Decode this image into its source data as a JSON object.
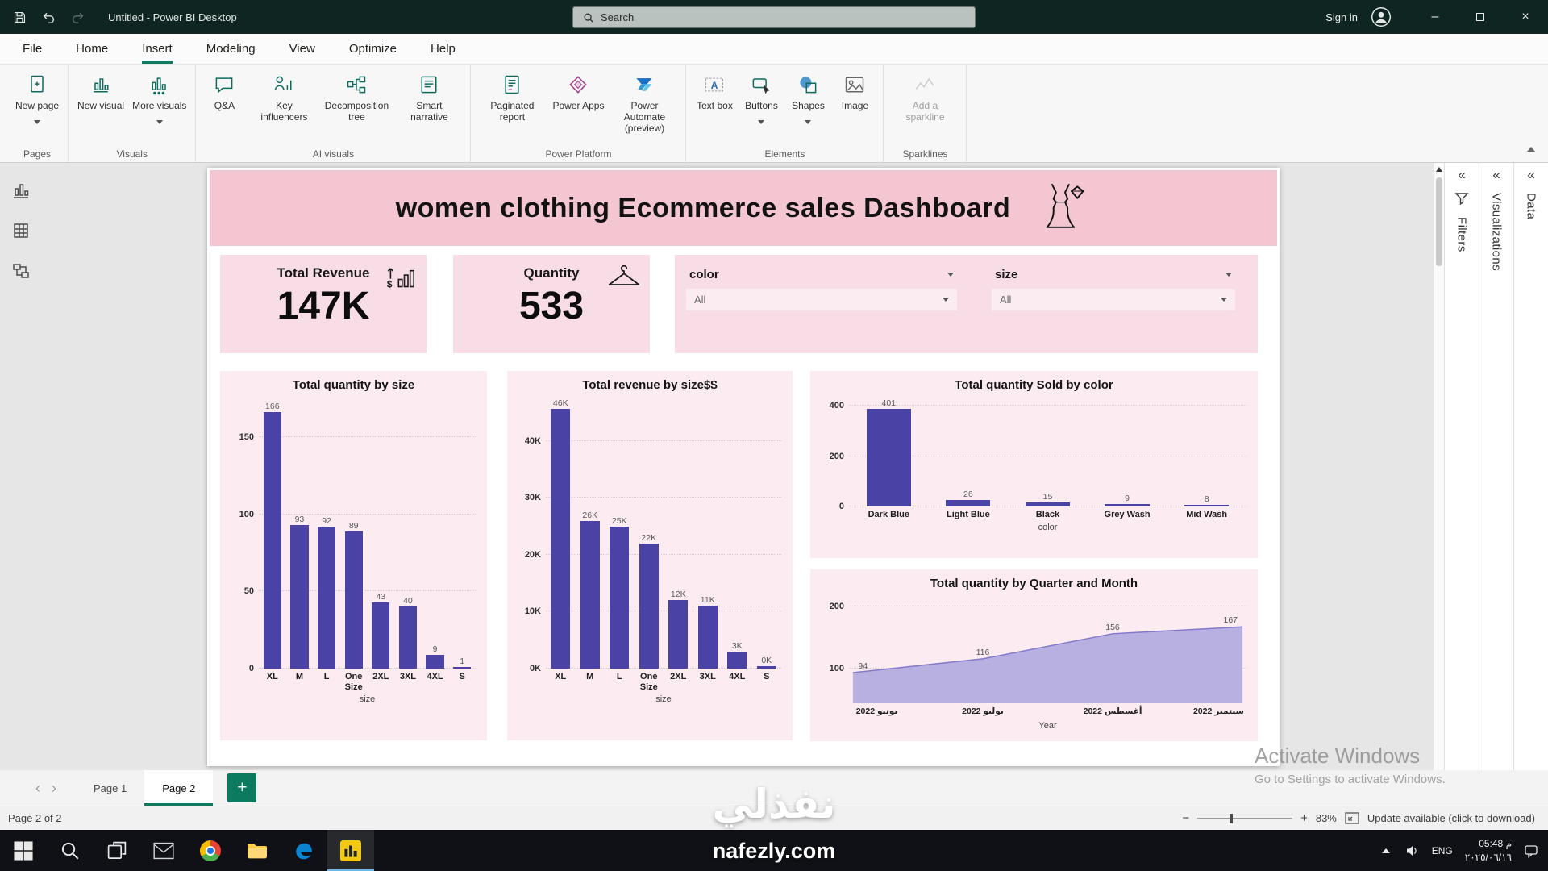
{
  "titlebar": {
    "title": "Untitled - Power BI Desktop",
    "search_placeholder": "Search",
    "sign_in_label": "Sign in"
  },
  "menu": {
    "items": [
      "File",
      "Home",
      "Insert",
      "Modeling",
      "View",
      "Optimize",
      "Help"
    ],
    "active": "Insert"
  },
  "ribbon": {
    "groups": [
      {
        "label": "Pages",
        "buttons": [
          {
            "label": "New page",
            "icon": "new-page-icon",
            "chevron": true
          }
        ]
      },
      {
        "label": "Visuals",
        "buttons": [
          {
            "label": "New visual",
            "icon": "new-visual-icon"
          },
          {
            "label": "More visuals",
            "icon": "more-visuals-icon",
            "chevron": true
          }
        ]
      },
      {
        "label": "AI visuals",
        "buttons": [
          {
            "label": "Q&A",
            "icon": "qa-icon"
          },
          {
            "label": "Key influencers",
            "icon": "key-influencers-icon"
          },
          {
            "label": "Decomposition tree",
            "icon": "decomposition-tree-icon"
          },
          {
            "label": "Smart narrative",
            "icon": "smart-narrative-icon"
          }
        ]
      },
      {
        "label": "Power Platform",
        "buttons": [
          {
            "label": "Paginated report",
            "icon": "paginated-report-icon"
          },
          {
            "label": "Power Apps",
            "icon": "power-apps-icon"
          },
          {
            "label": "Power Automate (preview)",
            "icon": "power-automate-icon"
          }
        ]
      },
      {
        "label": "Elements",
        "buttons": [
          {
            "label": "Text box",
            "icon": "text-box-icon"
          },
          {
            "label": "Buttons",
            "icon": "buttons-icon",
            "chevron": true
          },
          {
            "label": "Shapes",
            "icon": "shapes-icon",
            "chevron": true
          },
          {
            "label": "Image",
            "icon": "image-icon"
          }
        ]
      },
      {
        "label": "Sparklines",
        "buttons": [
          {
            "label": "Add a sparkline",
            "icon": "sparkline-icon",
            "disabled": true
          }
        ]
      }
    ]
  },
  "view_rail": {
    "items": [
      "report-view-icon",
      "table-view-icon",
      "model-view-icon"
    ]
  },
  "dashboard": {
    "title": "women clothing Ecommerce sales Dashboard",
    "cards": [
      {
        "label": "Total Revenue",
        "value": "147K",
        "icon": "revenue-icon"
      },
      {
        "label": "Quantity",
        "value": "533",
        "icon": "hanger-icon"
      }
    ],
    "slicers": [
      {
        "label": "color",
        "value": "All"
      },
      {
        "label": "size",
        "value": "All"
      }
    ]
  },
  "chart_data": [
    {
      "type": "bar",
      "title": "Total quantity by size",
      "xlabel": "size",
      "categories": [
        "XL",
        "M",
        "L",
        "One Size",
        "2XL",
        "3XL",
        "4XL",
        "S"
      ],
      "values": [
        166,
        93,
        92,
        89,
        43,
        40,
        9,
        1
      ],
      "value_labels": [
        "166",
        "93",
        "92",
        "89",
        "43",
        "40",
        "9",
        "1"
      ],
      "yticks": [
        {
          "v": 0,
          "label": "0"
        },
        {
          "v": 50,
          "label": "50"
        },
        {
          "v": 100,
          "label": "100"
        },
        {
          "v": 150,
          "label": "150"
        }
      ],
      "ymin": 0,
      "ymax": 175,
      "grid": true,
      "legend": "none"
    },
    {
      "type": "bar",
      "title": "Total revenue by size$$",
      "xlabel": "size",
      "categories": [
        "XL",
        "M",
        "L",
        "One Size",
        "2XL",
        "3XL",
        "4XL",
        "S"
      ],
      "values": [
        46,
        26,
        25,
        22,
        12,
        11,
        3,
        0.4
      ],
      "value_labels": [
        "46K",
        "26K",
        "25K",
        "22K",
        "12K",
        "11K",
        "3K",
        "0K"
      ],
      "yticks": [
        {
          "v": 0,
          "label": "0K"
        },
        {
          "v": 10,
          "label": "10K"
        },
        {
          "v": 20,
          "label": "20K"
        },
        {
          "v": 30,
          "label": "30K"
        },
        {
          "v": 40,
          "label": "40K"
        }
      ],
      "ymin": 0,
      "ymax": 47.5,
      "grid": true,
      "legend": "none"
    },
    {
      "type": "bar",
      "title": "Total quantity Sold by color",
      "xlabel": "color",
      "categories": [
        "Dark Blue",
        "Light Blue",
        "Black",
        "Grey Wash",
        "Mid Wash"
      ],
      "values": [
        401,
        26,
        15,
        9,
        8
      ],
      "value_labels": [
        "401",
        "26",
        "15",
        "9",
        "8"
      ],
      "yticks": [
        {
          "v": 0,
          "label": "0"
        },
        {
          "v": 200,
          "label": "200"
        },
        {
          "v": 400,
          "label": "400"
        }
      ],
      "ymin": 0,
      "ymax": 430,
      "grid": true,
      "legend": "none"
    },
    {
      "type": "area",
      "title": "Total quantity by Quarter and Month",
      "xlabel": "Year",
      "categories": [
        "يونيو 2022",
        "يوليو 2022",
        "أغسطس 2022",
        "سبتمبر 2022"
      ],
      "values": [
        94,
        116,
        156,
        167
      ],
      "value_labels": [
        "94",
        "116",
        "156",
        "167"
      ],
      "yticks": [
        {
          "v": 100,
          "label": "100"
        },
        {
          "v": 200,
          "label": "200"
        }
      ],
      "ymin": 45,
      "ymax": 215,
      "grid": true,
      "legend": "none"
    }
  ],
  "side_panels": [
    "Filters",
    "Visualizations",
    "Data"
  ],
  "pages_bar": {
    "tabs": [
      "Page 1",
      "Page 2"
    ],
    "active": "Page 2",
    "add_label": "+"
  },
  "status_bar": {
    "page_indicator": "Page 2 of 2",
    "zoom_out_label": "−",
    "zoom_in_label": "+",
    "zoom_level": "83%",
    "update_message": "Update available (click to download)"
  },
  "taskbar": {
    "items": [
      "start-icon",
      "taskbar-search-icon",
      "task-view-icon",
      "mail-app-icon",
      "chrome-icon",
      "file-explorer-icon",
      "edge-icon",
      "power-bi-icon"
    ],
    "active_item": "power-bi-icon",
    "language": "ENG",
    "time": "05:48 م",
    "date": "٢٠٢٥/٠٦/١٦"
  },
  "watermarks": {
    "activate_title": "Activate Windows",
    "activate_sub": "Go to Settings to activate Windows.",
    "site_ar": "نفذلي",
    "site_en": "nafezly.com"
  },
  "colors": {
    "accent_teal": "#0c7a5e",
    "bar_purple": "#4a42a5",
    "area_fill": "#b7b0e0",
    "area_line": "#8279cc",
    "header_pink": "#f4c6d2",
    "card_pink": "#f8dde6",
    "chart_pink": "#fcebf0"
  }
}
